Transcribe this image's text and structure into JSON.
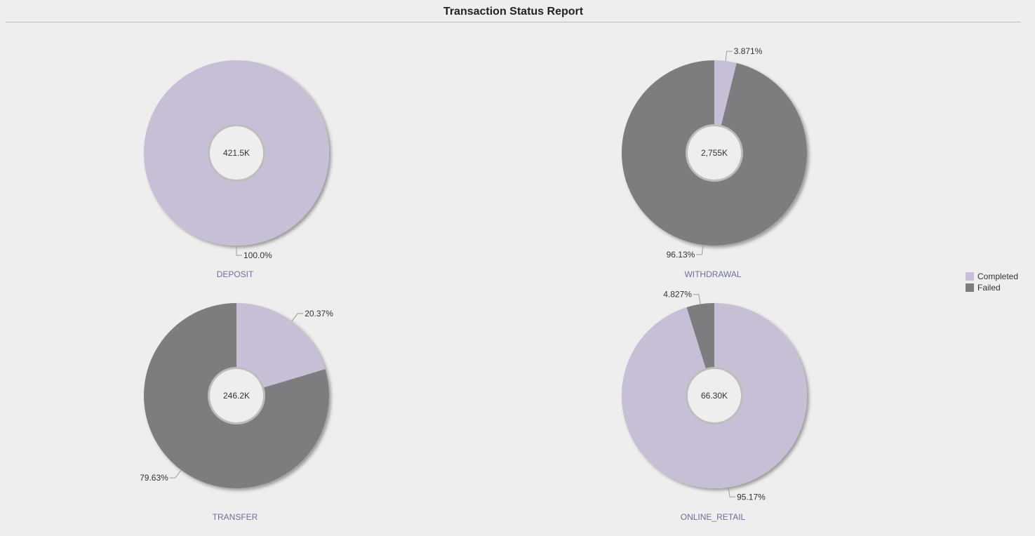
{
  "report": {
    "title": "Transaction Status Report"
  },
  "legend": {
    "items": [
      {
        "label": "Completed",
        "color": "#c7bfd5"
      },
      {
        "label": "Failed",
        "color": "#7d7d7f"
      }
    ]
  },
  "chart_data": {
    "type": "pie",
    "variant": "donut",
    "series_names": [
      "Completed",
      "Failed"
    ],
    "colors": {
      "Completed": "#c7bfd5",
      "Failed": "#7d7d7f"
    },
    "legend_position": "right",
    "charts": [
      {
        "category": "DEPOSIT",
        "total_label": "421.5K",
        "slices": [
          {
            "name": "Completed",
            "value": 100.0,
            "label": "100.0%"
          }
        ]
      },
      {
        "category": "WITHDRAWAL",
        "total_label": "2,755K",
        "slices": [
          {
            "name": "Completed",
            "value": 3.871,
            "label": "3.871%"
          },
          {
            "name": "Failed",
            "value": 96.13,
            "label": "96.13%"
          }
        ]
      },
      {
        "category": "TRANSFER",
        "total_label": "246.2K",
        "slices": [
          {
            "name": "Completed",
            "value": 20.37,
            "label": "20.37%"
          },
          {
            "name": "Failed",
            "value": 79.63,
            "label": "79.63%"
          }
        ]
      },
      {
        "category": "ONLINE_RETAIL",
        "total_label": "66.30K",
        "slices": [
          {
            "name": "Completed",
            "value": 95.17,
            "label": "95.17%"
          },
          {
            "name": "Failed",
            "value": 4.827,
            "label": "4.827%"
          }
        ]
      }
    ]
  }
}
